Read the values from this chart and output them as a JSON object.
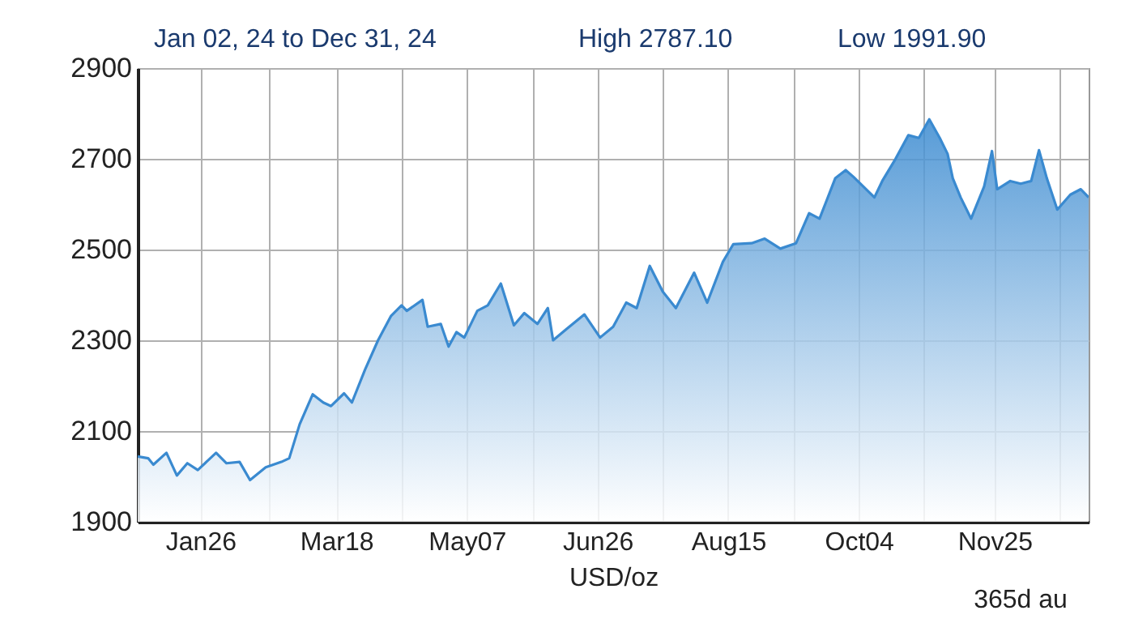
{
  "chart_data": {
    "type": "area",
    "title": "Jan 02, 24 to Dec 31, 24",
    "xlabel": "USD/oz",
    "annotations": [
      "High 2787.10",
      "Low  1991.90",
      "365d au"
    ],
    "xlim": [
      "--01-02",
      "--12-31"
    ],
    "xticks": [
      {
        "value": "--01-26",
        "label": "Jan26"
      },
      {
        "value": "--02-21",
        "label": null
      },
      {
        "value": "--03-18",
        "label": "Mar18"
      },
      {
        "value": "--04-12",
        "label": null
      },
      {
        "value": "--05-07",
        "label": "May07"
      },
      {
        "value": "--06-01",
        "label": null
      },
      {
        "value": "--06-26",
        "label": "Jun26"
      },
      {
        "value": "--07-21",
        "label": null
      },
      {
        "value": "--08-15",
        "label": "Aug15"
      },
      {
        "value": "--09-09",
        "label": null
      },
      {
        "value": "--10-04",
        "label": "Oct04"
      },
      {
        "value": "--10-29",
        "label": null
      },
      {
        "value": "--11-25",
        "label": "Nov25"
      },
      {
        "value": "--12-20",
        "label": null
      }
    ],
    "ylim": [
      1900,
      2900
    ],
    "yticks": [
      1900,
      2100,
      2300,
      2500,
      2700,
      2900
    ],
    "grid": true,
    "x": [
      "--01-02",
      "--01-06",
      "--01-08",
      "--01-13",
      "--01-17",
      "--01-21",
      "--01-25",
      "--02-01",
      "--02-05",
      "--02-10",
      "--02-14",
      "--02-20",
      "--02-26",
      "--02-29",
      "--03-04",
      "--03-09",
      "--03-13",
      "--03-16",
      "--03-21",
      "--03-24",
      "--03-29",
      "--04-03",
      "--04-08",
      "--04-12",
      "--04-14",
      "--04-20",
      "--04-22",
      "--04-27",
      "--04-30",
      "--05-03",
      "--05-06",
      "--05-11",
      "--05-15",
      "--05-20",
      "--05-25",
      "--05-29",
      "--06-03",
      "--06-07",
      "--06-09",
      "--06-14",
      "--06-21",
      "--06-27",
      "--07-02",
      "--07-07",
      "--07-11",
      "--07-16",
      "--07-21",
      "--07-26",
      "--08-02",
      "--08-07",
      "--08-13",
      "--08-17",
      "--08-24",
      "--08-29",
      "--09-04",
      "--09-10",
      "--09-15",
      "--09-19",
      "--09-25",
      "--09-29",
      "--10-02",
      "--10-10",
      "--10-13",
      "--10-18",
      "--10-23",
      "--10-27",
      "--10-31",
      "--11-04",
      "--11-07",
      "--11-09",
      "--11-12",
      "--11-16",
      "--11-21",
      "--11-24",
      "--11-26",
      "--12-01",
      "--12-05",
      "--12-09",
      "--12-12",
      "--12-15",
      "--12-19",
      "--12-24",
      "--12-28",
      "--12-31"
    ],
    "series": [
      {
        "color": "#3a8ad0",
        "values": [
          2044,
          2040,
          2026,
          2052,
          2002,
          2029,
          2014,
          2052,
          2029,
          2032,
          1992,
          2020,
          2032,
          2040,
          2115,
          2181,
          2163,
          2155,
          2183,
          2163,
          2235,
          2300,
          2354,
          2377,
          2365,
          2389,
          2330,
          2336,
          2286,
          2318,
          2306,
          2365,
          2377,
          2425,
          2333,
          2360,
          2336,
          2371,
          2300,
          2324,
          2357,
          2306,
          2330,
          2383,
          2371,
          2464,
          2407,
          2371,
          2449,
          2383,
          2473,
          2512,
          2514,
          2524,
          2502,
          2514,
          2580,
          2568,
          2657,
          2675,
          2660,
          2615,
          2651,
          2699,
          2752,
          2746,
          2787,
          2746,
          2711,
          2657,
          2615,
          2568,
          2639,
          2717,
          2633,
          2651,
          2645,
          2651,
          2719,
          2657,
          2588,
          2621,
          2633,
          2615
        ]
      }
    ]
  }
}
